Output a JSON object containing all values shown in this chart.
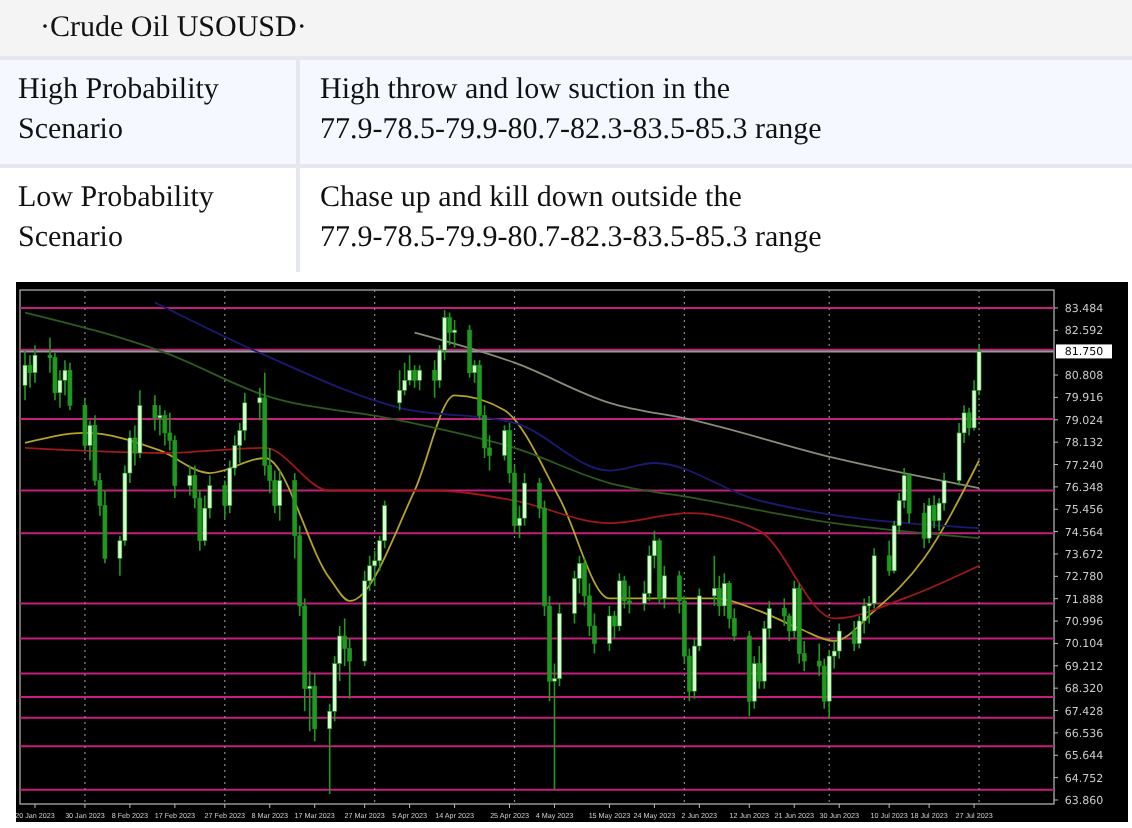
{
  "chart_data": {
    "type": "candlestick",
    "title": "·Crude Oil USOUSD·",
    "annotations": [
      "High Probability Scenario",
      "High throw and low suction in the 77.9-78.5-79.9-80.7-82.3-83.5-85.3 range",
      "Low Probability Scenario",
      "Chase up and kill down outside the 77.9-78.5-79.9-80.7-82.3-83.5-85.3 range"
    ],
    "x": [
      "2023-01-18",
      "2023-01-19",
      "2023-01-20",
      "2023-01-23",
      "2023-01-24",
      "2023-01-25",
      "2023-01-26",
      "2023-01-27",
      "2023-01-30",
      "2023-01-31",
      "2023-02-01",
      "2023-02-02",
      "2023-02-03",
      "2023-02-06",
      "2023-02-07",
      "2023-02-08",
      "2023-02-09",
      "2023-02-10",
      "2023-02-13",
      "2023-02-14",
      "2023-02-15",
      "2023-02-16",
      "2023-02-17",
      "2023-02-20",
      "2023-02-21",
      "2023-02-22",
      "2023-02-23",
      "2023-02-24",
      "2023-02-27",
      "2023-02-28",
      "2023-03-01",
      "2023-03-02",
      "2023-03-03",
      "2023-03-06",
      "2023-03-07",
      "2023-03-08",
      "2023-03-09",
      "2023-03-10",
      "2023-03-13",
      "2023-03-14",
      "2023-03-15",
      "2023-03-16",
      "2023-03-17",
      "2023-03-20",
      "2023-03-21",
      "2023-03-22",
      "2023-03-23",
      "2023-03-24",
      "2023-03-27",
      "2023-03-28",
      "2023-03-29",
      "2023-03-30",
      "2023-03-31",
      "2023-04-03",
      "2023-04-04",
      "2023-04-05",
      "2023-04-06",
      "2023-04-07",
      "2023-04-10",
      "2023-04-11",
      "2023-04-12",
      "2023-04-13",
      "2023-04-14",
      "2023-04-17",
      "2023-04-18",
      "2023-04-19",
      "2023-04-20",
      "2023-04-21",
      "2023-04-24",
      "2023-04-25",
      "2023-04-26",
      "2023-04-27",
      "2023-04-28",
      "2023-05-01",
      "2023-05-02",
      "2023-05-03",
      "2023-05-04",
      "2023-05-05",
      "2023-05-08",
      "2023-05-09",
      "2023-05-10",
      "2023-05-11",
      "2023-05-12",
      "2023-05-15",
      "2023-05-16",
      "2023-05-17",
      "2023-05-18",
      "2023-05-19",
      "2023-05-22",
      "2023-05-23",
      "2023-05-24",
      "2023-05-25",
      "2023-05-26",
      "2023-05-29",
      "2023-05-30",
      "2023-05-31",
      "2023-06-01",
      "2023-06-02",
      "2023-06-05",
      "2023-06-06",
      "2023-06-07",
      "2023-06-08",
      "2023-06-09",
      "2023-06-12",
      "2023-06-13",
      "2023-06-14",
      "2023-06-15",
      "2023-06-16",
      "2023-06-19",
      "2023-06-20",
      "2023-06-21",
      "2023-06-22",
      "2023-06-23",
      "2023-06-26",
      "2023-06-27",
      "2023-06-28",
      "2023-06-29",
      "2023-06-30",
      "2023-07-03",
      "2023-07-04",
      "2023-07-05",
      "2023-07-06",
      "2023-07-07",
      "2023-07-10",
      "2023-07-11",
      "2023-07-12",
      "2023-07-13",
      "2023-07-14",
      "2023-07-17",
      "2023-07-18",
      "2023-07-19",
      "2023-07-20",
      "2023-07-21",
      "2023-07-24",
      "2023-07-25",
      "2023-07-26",
      "2023-07-27",
      "2023-07-28"
    ],
    "ohlc": [
      [
        80.4,
        81.8,
        79.8,
        81.2
      ],
      [
        81.2,
        81.6,
        80.3,
        80.9
      ],
      [
        80.9,
        82.0,
        80.5,
        81.6
      ],
      [
        81.6,
        82.3,
        80.9,
        81.5
      ],
      [
        81.5,
        81.7,
        79.8,
        80.1
      ],
      [
        80.1,
        81.0,
        79.5,
        80.6
      ],
      [
        80.6,
        81.4,
        80.0,
        81.0
      ],
      [
        81.0,
        81.3,
        79.4,
        79.6
      ],
      [
        79.6,
        79.9,
        77.8,
        78.0
      ],
      [
        78.0,
        79.0,
        77.4,
        78.8
      ],
      [
        78.8,
        79.2,
        76.4,
        76.6
      ],
      [
        76.6,
        76.9,
        75.2,
        75.6
      ],
      [
        75.6,
        76.2,
        73.3,
        73.5
      ],
      [
        73.5,
        74.4,
        72.8,
        74.2
      ],
      [
        74.2,
        77.2,
        74.0,
        76.9
      ],
      [
        76.9,
        78.6,
        76.5,
        78.3
      ],
      [
        78.3,
        78.8,
        77.2,
        77.7
      ],
      [
        77.7,
        80.2,
        77.5,
        79.6
      ],
      [
        79.6,
        80.0,
        78.6,
        79.1
      ],
      [
        79.1,
        79.6,
        78.4,
        79.2
      ],
      [
        79.2,
        79.4,
        78.0,
        78.5
      ],
      [
        78.5,
        79.3,
        77.8,
        78.2
      ],
      [
        78.2,
        78.4,
        75.9,
        76.4
      ],
      [
        76.4,
        77.2,
        76.0,
        76.8
      ],
      [
        76.8,
        77.2,
        75.5,
        75.9
      ],
      [
        75.9,
        76.2,
        73.8,
        74.2
      ],
      [
        74.2,
        76.0,
        74.0,
        75.5
      ],
      [
        75.5,
        76.8,
        75.1,
        76.4
      ],
      [
        76.4,
        76.6,
        75.1,
        75.6
      ],
      [
        75.6,
        77.4,
        75.3,
        77.1
      ],
      [
        77.1,
        78.4,
        76.8,
        78.0
      ],
      [
        78.0,
        78.9,
        77.3,
        78.6
      ],
      [
        78.6,
        80.1,
        78.2,
        79.7
      ],
      [
        79.7,
        80.3,
        79.0,
        79.9
      ],
      [
        79.9,
        80.9,
        76.8,
        77.2
      ],
      [
        77.2,
        77.9,
        76.1,
        76.6
      ],
      [
        76.6,
        77.0,
        75.3,
        75.6
      ],
      [
        75.6,
        77.0,
        75.0,
        76.6
      ],
      [
        76.6,
        76.9,
        73.5,
        74.4
      ],
      [
        74.4,
        74.8,
        71.2,
        71.6
      ],
      [
        71.6,
        71.9,
        67.4,
        68.3
      ],
      [
        68.3,
        69.0,
        66.6,
        68.4
      ],
      [
        68.4,
        68.9,
        66.2,
        66.7
      ],
      [
        66.7,
        67.7,
        64.1,
        67.4
      ],
      [
        67.4,
        69.6,
        67.0,
        69.3
      ],
      [
        69.3,
        70.8,
        68.6,
        70.4
      ],
      [
        70.4,
        71.1,
        69.2,
        69.9
      ],
      [
        69.9,
        70.3,
        67.9,
        69.4
      ],
      [
        69.4,
        73.0,
        69.2,
        72.6
      ],
      [
        72.6,
        73.6,
        72.2,
        73.2
      ],
      [
        73.2,
        73.8,
        72.4,
        73.4
      ],
      [
        73.4,
        74.4,
        73.0,
        74.2
      ],
      [
        74.2,
        75.8,
        73.9,
        75.6
      ],
      [
        79.7,
        81.0,
        79.4,
        80.2
      ],
      [
        80.2,
        81.3,
        80.0,
        80.6
      ],
      [
        80.6,
        81.6,
        80.4,
        81.0
      ],
      [
        81.0,
        81.2,
        80.3,
        80.6
      ],
      [
        80.6,
        81.2,
        80.2,
        81.0
      ],
      [
        81.0,
        81.4,
        79.9,
        80.6
      ],
      [
        80.6,
        82.0,
        80.3,
        81.8
      ],
      [
        81.8,
        83.4,
        81.4,
        83.1
      ],
      [
        83.1,
        83.3,
        82.0,
        82.5
      ],
      [
        82.5,
        83.0,
        81.9,
        82.6
      ],
      [
        82.6,
        82.8,
        80.7,
        80.9
      ],
      [
        80.9,
        81.4,
        80.5,
        81.2
      ],
      [
        81.2,
        81.4,
        79.0,
        79.2
      ],
      [
        79.2,
        79.6,
        77.5,
        77.9
      ],
      [
        77.9,
        78.4,
        77.0,
        77.6
      ],
      [
        77.6,
        78.8,
        77.4,
        78.6
      ],
      [
        78.6,
        78.9,
        76.5,
        76.9
      ],
      [
        76.9,
        77.2,
        74.5,
        74.8
      ],
      [
        74.8,
        75.6,
        74.3,
        75.1
      ],
      [
        75.1,
        76.9,
        74.8,
        76.5
      ],
      [
        76.5,
        76.7,
        75.1,
        75.5
      ],
      [
        75.5,
        75.8,
        71.2,
        71.6
      ],
      [
        71.6,
        72.0,
        67.8,
        68.6
      ],
      [
        68.6,
        69.3,
        64.3,
        68.7
      ],
      [
        68.7,
        71.7,
        68.4,
        71.3
      ],
      [
        71.3,
        73.0,
        70.9,
        72.7
      ],
      [
        72.7,
        73.6,
        72.1,
        73.3
      ],
      [
        73.3,
        73.5,
        71.6,
        72.0
      ],
      [
        72.0,
        72.5,
        70.4,
        70.8
      ],
      [
        70.8,
        71.3,
        69.7,
        70.1
      ],
      [
        70.1,
        71.6,
        69.8,
        71.2
      ],
      [
        71.2,
        71.4,
        70.3,
        70.8
      ],
      [
        70.8,
        72.9,
        70.6,
        72.6
      ],
      [
        72.6,
        72.8,
        71.5,
        71.8
      ],
      [
        71.8,
        72.4,
        71.3,
        71.7
      ],
      [
        71.7,
        72.6,
        71.4,
        72.1
      ],
      [
        72.1,
        74.0,
        71.8,
        73.6
      ],
      [
        73.6,
        74.6,
        73.1,
        74.2
      ],
      [
        74.2,
        74.3,
        71.7,
        71.9
      ],
      [
        71.9,
        73.2,
        71.5,
        72.8
      ],
      [
        72.8,
        73.0,
        71.3,
        71.8
      ],
      [
        71.8,
        72.0,
        69.3,
        69.6
      ],
      [
        69.6,
        69.9,
        67.8,
        68.2
      ],
      [
        68.2,
        70.3,
        67.9,
        70.0
      ],
      [
        70.0,
        72.3,
        69.8,
        72.0
      ],
      [
        72.0,
        73.6,
        71.6,
        72.3
      ],
      [
        72.3,
        72.8,
        71.2,
        71.6
      ],
      [
        71.6,
        72.9,
        71.2,
        72.5
      ],
      [
        72.5,
        72.6,
        70.7,
        71.1
      ],
      [
        71.1,
        71.5,
        70.2,
        70.4
      ],
      [
        70.4,
        70.6,
        67.2,
        67.8
      ],
      [
        67.8,
        69.6,
        67.5,
        69.3
      ],
      [
        69.3,
        70.0,
        68.3,
        68.6
      ],
      [
        68.6,
        71.0,
        68.3,
        70.7
      ],
      [
        70.7,
        71.8,
        70.3,
        71.5
      ],
      [
        71.5,
        71.9,
        70.8,
        71.2
      ],
      [
        71.2,
        71.3,
        70.2,
        70.6
      ],
      [
        70.6,
        72.6,
        70.3,
        72.3
      ],
      [
        72.3,
        72.5,
        69.3,
        69.7
      ],
      [
        69.7,
        70.2,
        69.0,
        69.4
      ],
      [
        69.4,
        70.1,
        68.8,
        69.2
      ],
      [
        69.2,
        69.5,
        67.5,
        67.8
      ],
      [
        67.8,
        69.8,
        67.1,
        69.6
      ],
      [
        69.6,
        70.2,
        69.1,
        69.8
      ],
      [
        69.8,
        70.9,
        69.5,
        70.6
      ],
      [
        70.6,
        71.0,
        69.8,
        70.1
      ],
      [
        70.1,
        71.2,
        69.9,
        71.0
      ],
      [
        71.0,
        71.9,
        70.5,
        71.6
      ],
      [
        71.6,
        72.0,
        70.9,
        71.7
      ],
      [
        71.7,
        73.9,
        71.5,
        73.6
      ],
      [
        73.6,
        74.2,
        72.8,
        73.0
      ],
      [
        73.0,
        75.0,
        72.9,
        74.8
      ],
      [
        74.8,
        76.1,
        74.5,
        75.8
      ],
      [
        75.8,
        77.1,
        75.5,
        76.8
      ],
      [
        76.8,
        76.9,
        74.9,
        75.3
      ],
      [
        75.3,
        75.7,
        73.9,
        74.3
      ],
      [
        74.3,
        75.9,
        74.1,
        75.6
      ],
      [
        75.6,
        76.0,
        74.7,
        75.0
      ],
      [
        75.0,
        75.9,
        74.6,
        75.7
      ],
      [
        75.7,
        76.9,
        75.4,
        76.6
      ],
      [
        76.6,
        78.9,
        76.4,
        78.5
      ],
      [
        78.5,
        79.6,
        78.1,
        79.3
      ],
      [
        79.3,
        79.5,
        78.4,
        78.7
      ],
      [
        78.7,
        80.6,
        78.6,
        80.2
      ],
      [
        80.2,
        82.0,
        80.0,
        81.75
      ]
    ],
    "series": [
      {
        "type": "line",
        "color": "#b5a226",
        "x": [
          "2023-01-18",
          "2023-01-30",
          "2023-02-14",
          "2023-02-24",
          "2023-03-07",
          "2023-03-20",
          "2023-03-24",
          "2023-04-06",
          "2023-04-14",
          "2023-04-24",
          "2023-05-05",
          "2023-05-15",
          "2023-05-24",
          "2023-06-05",
          "2023-06-14",
          "2023-06-22",
          "2023-06-29",
          "2023-07-07",
          "2023-07-17",
          "2023-07-28"
        ],
        "values": [
          78.1,
          78.5,
          77.8,
          76.9,
          77.5,
          72.7,
          71.8,
          76.2,
          80.0,
          79.4,
          75.9,
          71.9,
          71.9,
          71.9,
          71.4,
          70.7,
          70.2,
          71.4,
          73.5,
          77.4
        ]
      },
      {
        "type": "line",
        "color": "#a01818",
        "x": [
          "2023-01-18",
          "2023-02-15",
          "2023-03-07",
          "2023-03-20",
          "2023-04-10",
          "2023-04-26",
          "2023-05-15",
          "2023-05-31",
          "2023-06-14",
          "2023-06-29",
          "2023-07-13",
          "2023-07-28"
        ],
        "values": [
          77.9,
          77.7,
          77.9,
          76.2,
          76.2,
          75.8,
          74.9,
          75.3,
          74.6,
          71.1,
          71.9,
          73.2
        ]
      },
      {
        "type": "line",
        "color": "#2e5a1e",
        "x": [
          "2023-01-18",
          "2023-02-15",
          "2023-03-07",
          "2023-04-03",
          "2023-04-26",
          "2023-05-15",
          "2023-06-01",
          "2023-06-29",
          "2023-07-28"
        ],
        "values": [
          83.3,
          81.7,
          80.0,
          79.0,
          77.9,
          76.5,
          75.9,
          74.9,
          74.3
        ]
      },
      {
        "type": "line",
        "color": "#1a1a70",
        "x": [
          "2023-02-13",
          "2023-03-07",
          "2023-04-03",
          "2023-04-26",
          "2023-05-15",
          "2023-05-24",
          "2023-06-14",
          "2023-07-28"
        ],
        "values": [
          83.7,
          81.6,
          79.5,
          78.9,
          77.0,
          77.3,
          75.8,
          74.7
        ]
      },
      {
        "type": "line",
        "color": "#8a8a7a",
        "x": [
          "2023-04-06",
          "2023-04-26",
          "2023-05-15",
          "2023-06-01",
          "2023-06-29",
          "2023-07-28"
        ],
        "values": [
          82.5,
          81.3,
          79.7,
          79.0,
          77.5,
          76.3
        ]
      }
    ],
    "xlim": [
      "2023-01-17",
      "2023-08-12"
    ],
    "xticks": [
      {
        "value": "2023-01-20",
        "label": "20 Jan 2023"
      },
      {
        "value": "2023-01-30",
        "label": "30 Jan 2023"
      },
      {
        "value": "2023-02-08",
        "label": "8 Feb 2023"
      },
      {
        "value": "2023-02-17",
        "label": "17 Feb 2023"
      },
      {
        "value": "2023-02-27",
        "label": "27 Feb 2023"
      },
      {
        "value": "2023-03-08",
        "label": "8 Mar 2023"
      },
      {
        "value": "2023-03-17",
        "label": "17 Mar 2023"
      },
      {
        "value": "2023-03-27",
        "label": "27 Mar 2023"
      },
      {
        "value": "2023-04-05",
        "label": "5 Apr 2023"
      },
      {
        "value": "2023-04-14",
        "label": "14 Apr 2023"
      },
      {
        "value": "2023-04-25",
        "label": "25 Apr 2023"
      },
      {
        "value": "2023-05-04",
        "label": "4 May 2023"
      },
      {
        "value": "2023-05-15",
        "label": "15 May 2023"
      },
      {
        "value": "2023-05-24",
        "label": "24 May 2023"
      },
      {
        "value": "2023-06-02",
        "label": "2 Jun 2023"
      },
      {
        "value": "2023-06-12",
        "label": "12 Jun 2023"
      },
      {
        "value": "2023-06-21",
        "label": "21 Jun 2023"
      },
      {
        "value": "2023-06-30",
        "label": "30 Jun 2023"
      },
      {
        "value": "2023-07-10",
        "label": "10 Jul 2023"
      },
      {
        "value": "2023-07-18",
        "label": "18 Jul 2023"
      },
      {
        "value": "2023-07-27",
        "label": "27 Jul 2023"
      }
    ],
    "ylim": [
      63.7,
      84.2
    ],
    "yticks": [
      {
        "value": 63.86,
        "label": "63.860"
      },
      {
        "value": 64.752,
        "label": "64.752"
      },
      {
        "value": 65.644,
        "label": "65.644"
      },
      {
        "value": 66.536,
        "label": "66.536"
      },
      {
        "value": 67.428,
        "label": "67.428"
      },
      {
        "value": 68.32,
        "label": "68.320"
      },
      {
        "value": 69.212,
        "label": "69.212"
      },
      {
        "value": 70.104,
        "label": "70.104"
      },
      {
        "value": 70.996,
        "label": "70.996"
      },
      {
        "value": 71.888,
        "label": "71.888"
      },
      {
        "value": 72.78,
        "label": "72.780"
      },
      {
        "value": 73.672,
        "label": "73.672"
      },
      {
        "value": 74.564,
        "label": "74.564"
      },
      {
        "value": 75.456,
        "label": "75.456"
      },
      {
        "value": 76.348,
        "label": "76.348"
      },
      {
        "value": 77.24,
        "label": "77.240"
      },
      {
        "value": 78.132,
        "label": "78.132"
      },
      {
        "value": 79.024,
        "label": "79.024"
      },
      {
        "value": 79.916,
        "label": "79.916"
      },
      {
        "value": 80.808,
        "label": "80.808"
      },
      {
        "value": 82.592,
        "label": "82.592"
      },
      {
        "value": 83.484,
        "label": "83.484"
      }
    ],
    "ref_lines": [
      {
        "axis": "y",
        "value": 83.48,
        "color": "#c2207c"
      },
      {
        "axis": "y",
        "value": 81.82,
        "color": "#c2207c"
      },
      {
        "axis": "y",
        "value": 79.06,
        "color": "#c2207c"
      },
      {
        "axis": "y",
        "value": 76.2,
        "color": "#c2207c"
      },
      {
        "axis": "y",
        "value": 74.5,
        "color": "#c2207c"
      },
      {
        "axis": "y",
        "value": 71.7,
        "color": "#c2207c"
      },
      {
        "axis": "y",
        "value": 70.3,
        "color": "#c2207c"
      },
      {
        "axis": "y",
        "value": 68.9,
        "color": "#c2207c"
      },
      {
        "axis": "y",
        "value": 67.97,
        "color": "#c2207c"
      },
      {
        "axis": "y",
        "value": 67.14,
        "color": "#c2207c"
      },
      {
        "axis": "y",
        "value": 66.0,
        "color": "#c2207c"
      },
      {
        "axis": "y",
        "value": 64.27,
        "color": "#c2207c"
      },
      {
        "axis": "y",
        "value": 81.75,
        "label": "81.750",
        "color": "#9a9a9a"
      },
      {
        "axis": "x",
        "value": "2023-01-30",
        "color": "#8a8a8a",
        "line_style": "dotted"
      },
      {
        "axis": "x",
        "value": "2023-02-27",
        "color": "#8a8a8a",
        "line_style": "dotted"
      },
      {
        "axis": "x",
        "value": "2023-03-29",
        "color": "#8a8a8a",
        "line_style": "dotted"
      },
      {
        "axis": "x",
        "value": "2023-04-26",
        "color": "#8a8a8a",
        "line_style": "dotted"
      },
      {
        "axis": "x",
        "value": "2023-05-30",
        "color": "#8a8a8a",
        "line_style": "dotted"
      },
      {
        "axis": "x",
        "value": "2023-06-28",
        "color": "#8a8a8a",
        "line_style": "dotted"
      },
      {
        "axis": "x",
        "value": "2023-07-28",
        "color": "#8a8a8a",
        "line_style": "dotted"
      }
    ]
  }
}
